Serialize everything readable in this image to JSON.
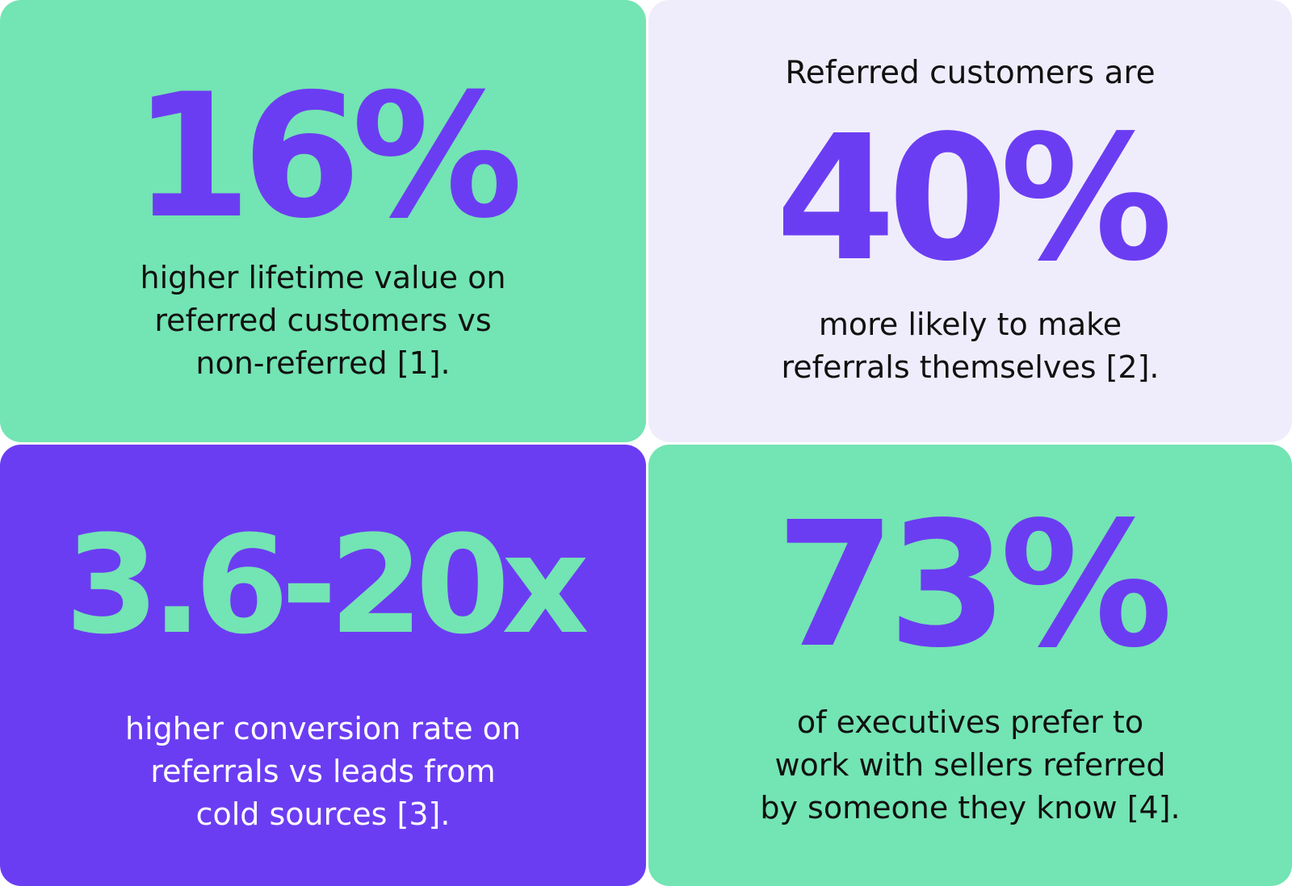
{
  "colors": {
    "green": "#73e4b3",
    "lavender": "#efedfb",
    "purple": "#6b3df2",
    "dark_text": "#111111",
    "white_text": "#ffffff"
  },
  "cards": [
    {
      "stat": "16%",
      "intro": "",
      "description": "higher lifetime value on\nreferred customers vs\nnon-referred [1]."
    },
    {
      "stat": "40%",
      "intro": "Referred customers are",
      "description": "more likely to make\nreferrals themselves [2]."
    },
    {
      "stat": "3.6-20x",
      "intro": "",
      "description": "higher conversion rate on\nreferrals vs leads from\ncold sources [3]."
    },
    {
      "stat": "73%",
      "intro": "",
      "description": "of executives prefer to\nwork with sellers referred\nby someone they know [4]."
    }
  ]
}
